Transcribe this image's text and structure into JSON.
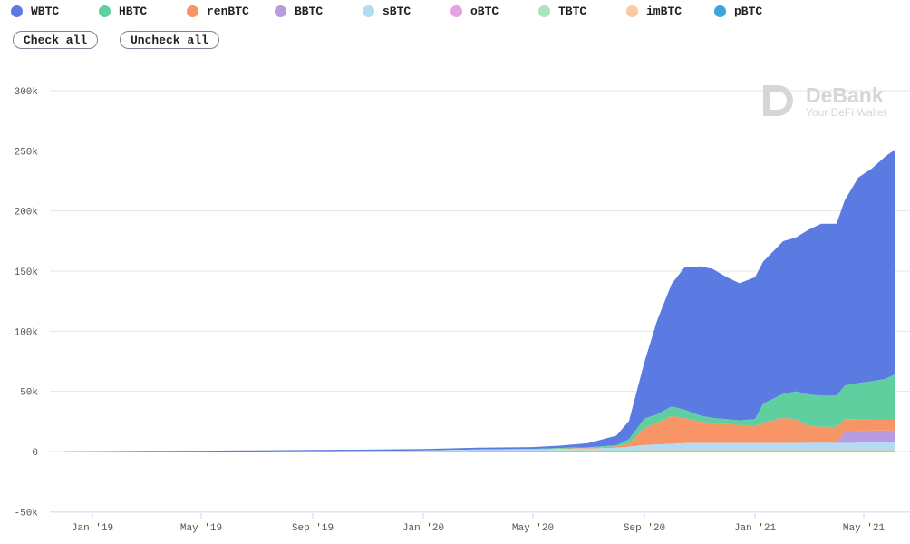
{
  "controls": {
    "check_all": "Check all",
    "uncheck_all": "Uncheck all"
  },
  "watermark": {
    "brand": "DeBank",
    "tagline": "Your DeFi Wallet"
  },
  "chart_data": {
    "type": "area",
    "stacked": true,
    "title": "",
    "xlabel": "",
    "ylabel": "",
    "ylim": [
      -50000,
      300000
    ],
    "yticks": [
      -50000,
      0,
      50000,
      100000,
      150000,
      200000,
      250000,
      300000
    ],
    "ytick_labels": [
      "-50k",
      "0",
      "50k",
      "100k",
      "150k",
      "200k",
      "250k",
      "300k"
    ],
    "xticks": [
      "2019-01-01",
      "2019-05-01",
      "2019-09-01",
      "2020-01-01",
      "2020-05-01",
      "2020-09-01",
      "2021-01-01",
      "2021-05-01"
    ],
    "xtick_labels": [
      "Jan '19",
      "May '19",
      "Sep '19",
      "Jan '20",
      "May '20",
      "Sep '20",
      "Jan '21",
      "May '21"
    ],
    "grid": "horizontal",
    "legend_placement": "top-left",
    "x": [
      "2018-12-01",
      "2019-01-01",
      "2019-03-01",
      "2019-05-01",
      "2019-07-01",
      "2019-09-01",
      "2019-11-01",
      "2020-01-01",
      "2020-03-01",
      "2020-05-01",
      "2020-06-01",
      "2020-07-01",
      "2020-08-01",
      "2020-08-15",
      "2020-09-01",
      "2020-09-15",
      "2020-10-01",
      "2020-10-15",
      "2020-11-01",
      "2020-11-15",
      "2020-12-01",
      "2020-12-15",
      "2021-01-01",
      "2021-01-10",
      "2021-02-01",
      "2021-02-15",
      "2021-03-01",
      "2021-03-15",
      "2021-04-01",
      "2021-04-10",
      "2021-04-25",
      "2021-05-10",
      "2021-05-25",
      "2021-06-05"
    ],
    "series": [
      {
        "name": "WBTC",
        "color": "#5b7be2",
        "values": [
          200,
          300,
          500,
          700,
          1000,
          1000,
          1100,
          1300,
          1500,
          1500,
          2000,
          3500,
          8000,
          15000,
          47000,
          78000,
          102000,
          118000,
          124000,
          124000,
          118000,
          114000,
          118000,
          118000,
          127000,
          128000,
          137000,
          143000,
          143000,
          154000,
          171000,
          177000,
          185000,
          187000
        ]
      },
      {
        "name": "HBTC",
        "color": "#5fcf9f",
        "values": [
          0,
          0,
          0,
          0,
          0,
          0,
          0,
          0,
          0,
          300,
          500,
          500,
          1000,
          4000,
          8000,
          7000,
          8000,
          7000,
          5000,
          4000,
          4000,
          4000,
          6000,
          16000,
          20000,
          23000,
          26000,
          26000,
          26000,
          28000,
          30000,
          32000,
          34000,
          38000
        ]
      },
      {
        "name": "renBTC",
        "color": "#f79566",
        "values": [
          0,
          0,
          0,
          0,
          0,
          0,
          0,
          0,
          0,
          200,
          300,
          500,
          1000,
          2500,
          14000,
          18000,
          23000,
          21000,
          18000,
          17000,
          16000,
          15000,
          14000,
          17000,
          21000,
          20000,
          14000,
          13000,
          13000,
          11000,
          10000,
          9000,
          9000,
          9000
        ]
      },
      {
        "name": "BBTC",
        "color": "#b89ce0",
        "values": [
          0,
          0,
          0,
          0,
          0,
          0,
          0,
          0,
          0,
          0,
          0,
          0,
          0,
          0,
          0,
          0,
          0,
          0,
          0,
          0,
          0,
          0,
          0,
          0,
          0,
          0,
          500,
          500,
          500,
          9000,
          9500,
          10000,
          10000,
          10000
        ]
      },
      {
        "name": "sBTC",
        "color": "#b3dcf4",
        "values": [
          0,
          0,
          0,
          0,
          0,
          300,
          500,
          800,
          1000,
          1000,
          1200,
          1300,
          1500,
          2000,
          3000,
          3500,
          4000,
          4500,
          4500,
          4500,
          4500,
          4500,
          4500,
          4500,
          4500,
          4500,
          4500,
          4500,
          4500,
          4500,
          5000,
          5000,
          5000,
          5000
        ]
      },
      {
        "name": "oBTC",
        "color": "#e8a0e4",
        "values": [
          0,
          0,
          0,
          0,
          0,
          0,
          0,
          0,
          0,
          0,
          0,
          0,
          200,
          200,
          200,
          200,
          200,
          200,
          200,
          200,
          200,
          200,
          200,
          200,
          200,
          200,
          200,
          200,
          200,
          200,
          200,
          200,
          200,
          200
        ]
      },
      {
        "name": "TBTC",
        "color": "#a9e4bd",
        "values": [
          0,
          0,
          0,
          0,
          0,
          0,
          0,
          0,
          0,
          0,
          300,
          500,
          800,
          1000,
          1500,
          1500,
          1500,
          1500,
          1500,
          1500,
          1500,
          1500,
          1500,
          1500,
          1500,
          1500,
          1500,
          1500,
          1500,
          1500,
          1500,
          1500,
          1500,
          1500
        ]
      },
      {
        "name": "imBTC",
        "color": "#fbc8a0",
        "values": [
          0,
          0,
          0,
          0,
          0,
          0,
          0,
          0,
          400,
          400,
          400,
          400,
          400,
          400,
          400,
          400,
          400,
          400,
          400,
          400,
          400,
          400,
          400,
          400,
          400,
          400,
          400,
          400,
          400,
          400,
          400,
          400,
          400,
          400
        ]
      },
      {
        "name": "pBTC",
        "color": "#3aa6dd",
        "values": [
          0,
          0,
          0,
          0,
          0,
          0,
          0,
          0,
          300,
          300,
          300,
          300,
          300,
          300,
          300,
          300,
          300,
          300,
          300,
          300,
          300,
          300,
          300,
          300,
          300,
          300,
          300,
          300,
          300,
          300,
          300,
          300,
          300,
          300
        ]
      }
    ]
  }
}
